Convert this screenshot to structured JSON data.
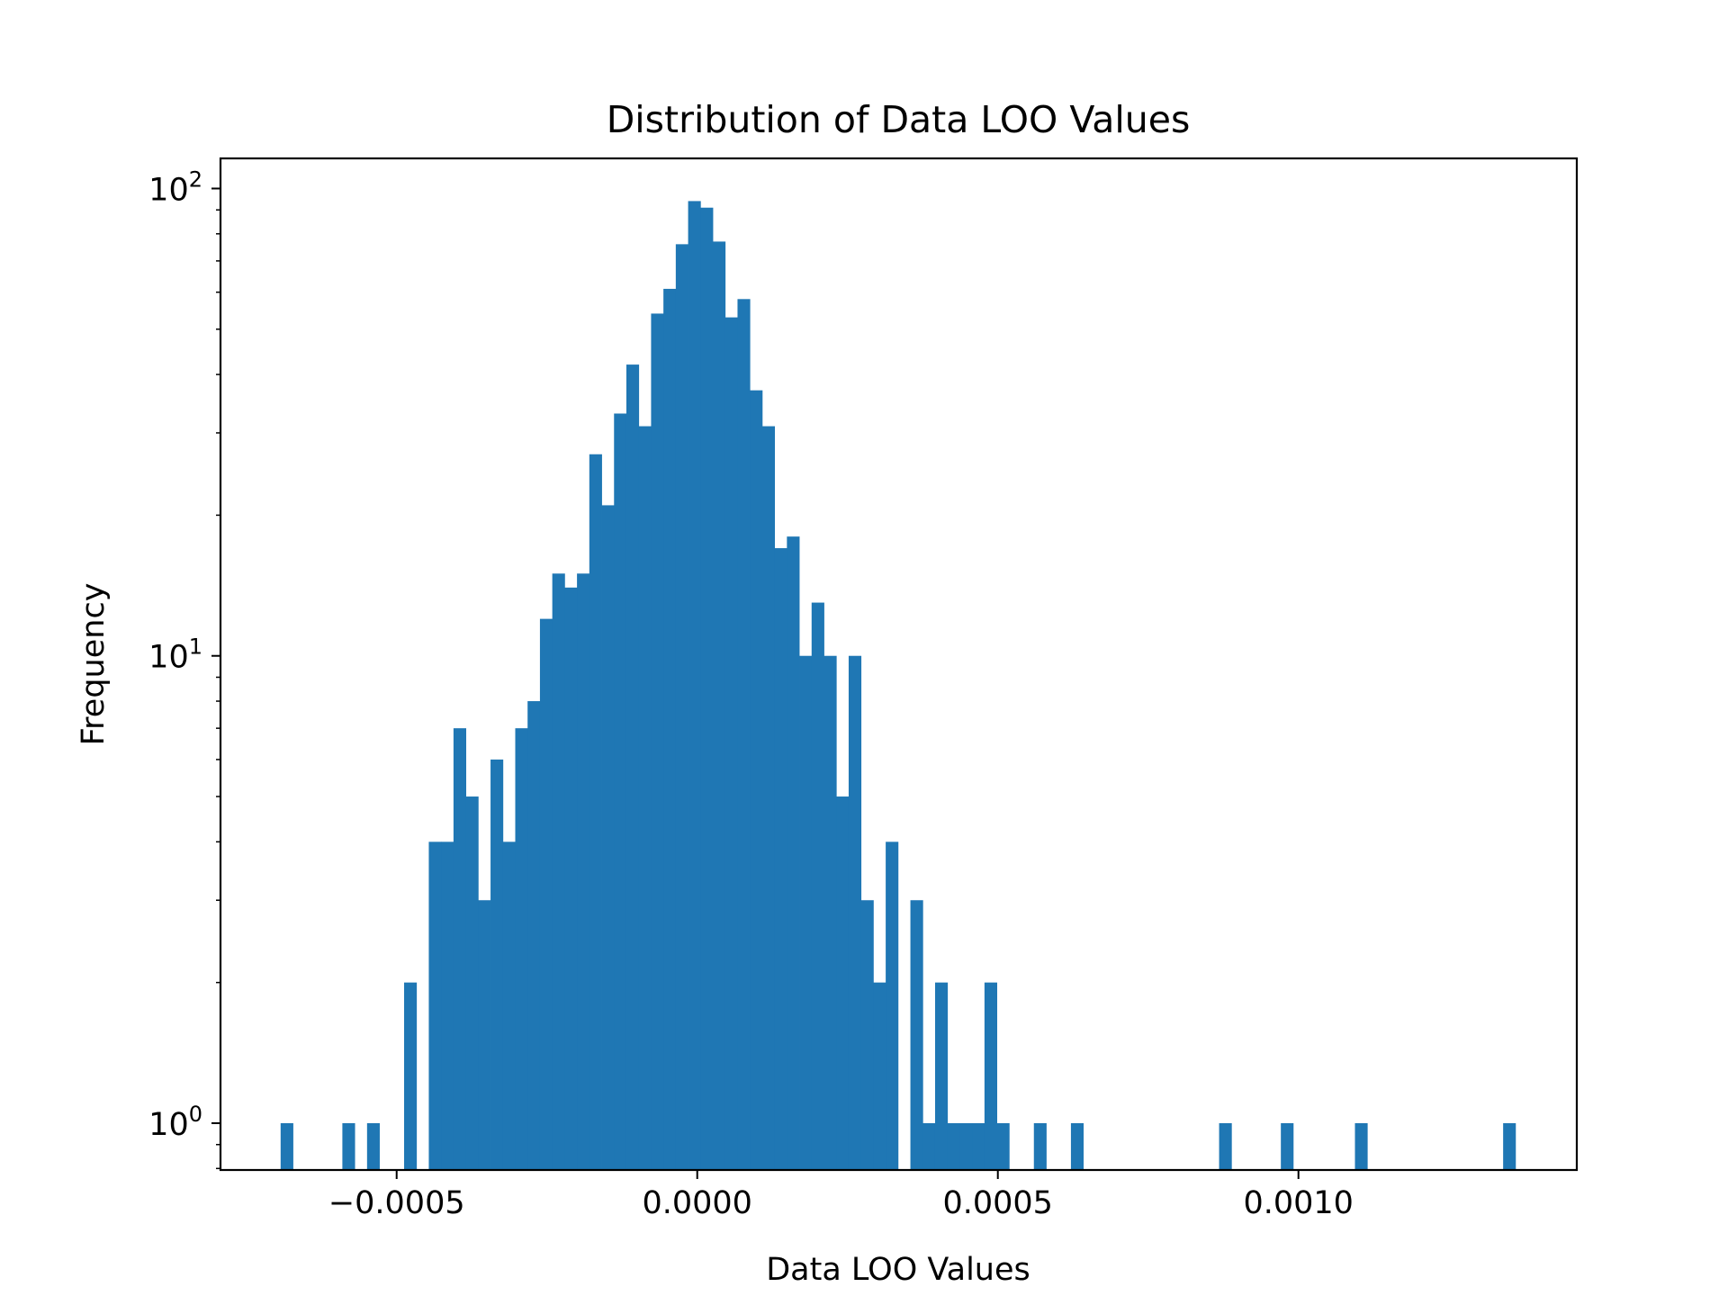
{
  "chart_data": {
    "type": "histogram",
    "title": "Distribution of Data LOO Values",
    "xlabel": "Data LOO Values",
    "ylabel": "Frequency",
    "yscale": "log",
    "xlim": [
      -0.000793,
      0.001463
    ],
    "ylim": [
      0.794,
      116
    ],
    "bin_range": [
      -0.000693,
      0.001361
    ],
    "bar_color": "#1f77b4",
    "grid": false,
    "x_ticks": [
      {
        "value": -0.0005,
        "label": "−0.0005"
      },
      {
        "value": 0.0,
        "label": "0.0000"
      },
      {
        "value": 0.0005,
        "label": "0.0005"
      },
      {
        "value": 0.001,
        "label": "0.0010"
      }
    ],
    "y_ticks": [
      {
        "value": 1,
        "base": "10",
        "exp": "0"
      },
      {
        "value": 10,
        "base": "10",
        "exp": "1"
      },
      {
        "value": 100,
        "base": "10",
        "exp": "2"
      }
    ],
    "counts": [
      1,
      0,
      0,
      0,
      0,
      1,
      0,
      1,
      0,
      0,
      2,
      0,
      4,
      4,
      7,
      5,
      3,
      6,
      4,
      7,
      8,
      12,
      15,
      14,
      15,
      27,
      21,
      33,
      42,
      31,
      54,
      61,
      76,
      94,
      91,
      77,
      53,
      58,
      37,
      31,
      17,
      18,
      10,
      13,
      10,
      5,
      10,
      3,
      2,
      4,
      0,
      3,
      1,
      2,
      1,
      1,
      1,
      2,
      1,
      0,
      0,
      1,
      0,
      0,
      1,
      0,
      0,
      0,
      0,
      0,
      0,
      0,
      0,
      0,
      0,
      0,
      1,
      0,
      0,
      0,
      0,
      1,
      0,
      0,
      0,
      0,
      0,
      1,
      0,
      0,
      0,
      0,
      0,
      0,
      0,
      0,
      0,
      0,
      0,
      1
    ]
  }
}
